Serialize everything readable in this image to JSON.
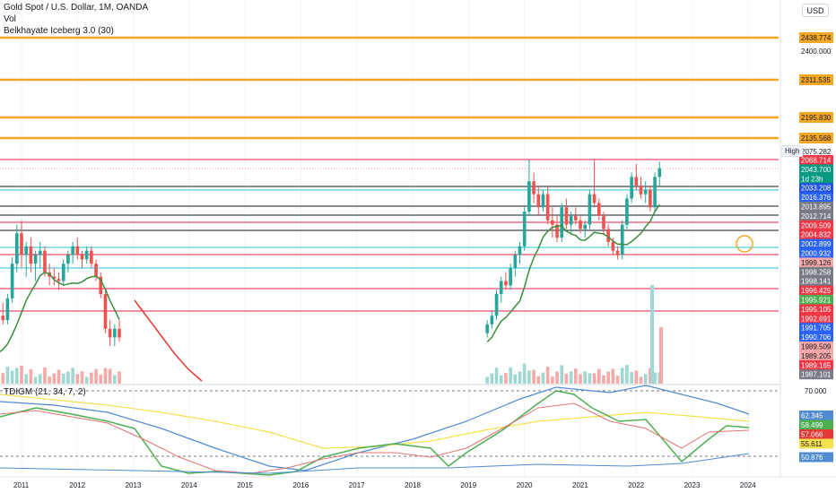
{
  "header": {
    "title": "Gold Spot / U.S. Dollar, 1M, OANDA",
    "vol_label": "Vol",
    "indicator_label": "Belkhayate Iceberg 3.0 (30)",
    "currency_button": "USD",
    "osc_label": "TDIGM (21, 34, 7, 2)",
    "high_tag": "High"
  },
  "colors": {
    "up": "#26a69a",
    "down": "#ef5350",
    "vol_up": "#9fd8d2",
    "vol_down": "#f7a9a7",
    "orange": "#f5a623",
    "red_line": "#e91e40",
    "black_line": "#131722",
    "teal_line": "#26c6da",
    "ma": "#388e3c",
    "ma_red": "#e53935",
    "osc_blue": "#4f8ad3",
    "osc_yellow": "#f4e04d",
    "osc_green": "#4caf50",
    "osc_pink": "#e57373"
  },
  "chart_data": [
    {
      "type": "candlestick",
      "title": "Gold Spot / U.S. Dollar, 1M, OANDA",
      "x_ticks": [
        "2011",
        "2012",
        "2013",
        "2014",
        "2015",
        "2016",
        "2017",
        "2018",
        "2019",
        "2020",
        "2021",
        "2022",
        "2023",
        "2024"
      ],
      "y_scale": "piecewise",
      "y_tick_labels": [
        "2438.774",
        "2400.000",
        "2311.535",
        "2195.830",
        "2135.568",
        "2075.282"
      ],
      "visible_price_gridline": "2400.000",
      "horizontal_levels": [
        {
          "price": "2438.774",
          "color": "orange"
        },
        {
          "price": "2311.535",
          "color": "orange"
        },
        {
          "price": "2195.830",
          "color": "orange"
        },
        {
          "price": "2135.568",
          "color": "orange"
        },
        {
          "price": "2068.714",
          "color": "red"
        },
        {
          "price": "2033.208",
          "color": "black"
        },
        {
          "price": "2016.376",
          "color": "teal"
        },
        {
          "price": "2013.895",
          "color": "black"
        },
        {
          "price": "2012.714",
          "color": "black"
        },
        {
          "price": "2009.509",
          "color": "red"
        },
        {
          "price": "2004.832",
          "color": "black"
        },
        {
          "price": "2002.899",
          "color": "teal"
        },
        {
          "price": "2000.932",
          "color": "red"
        },
        {
          "price": "1998.258",
          "color": "teal"
        },
        {
          "price": "1996.425",
          "color": "red"
        },
        {
          "price": "1992.691",
          "color": "red"
        }
      ],
      "price_labels": [
        {
          "text": "2068.714",
          "bg": "#f23645",
          "fg": "#ffffff"
        },
        {
          "text": "2043.700",
          "bg": "#089981",
          "fg": "#ffffff"
        },
        {
          "text": "1d 23h",
          "bg": "#089981",
          "fg": "#ffffff"
        },
        {
          "text": "2033.208",
          "bg": "#1e53e5",
          "fg": "#ffffff"
        },
        {
          "text": "2016.376",
          "bg": "#2962ff",
          "fg": "#ffffff"
        },
        {
          "text": "2013.895",
          "bg": "#787b86",
          "fg": "#ffffff"
        },
        {
          "text": "2012.714",
          "bg": "#787b86",
          "fg": "#ffffff"
        },
        {
          "text": "2009.509",
          "bg": "#f23645",
          "fg": "#ffffff"
        },
        {
          "text": "2004.832",
          "bg": "#f23645",
          "fg": "#ffffff"
        },
        {
          "text": "2002.899",
          "bg": "#2962ff",
          "fg": "#ffffff"
        },
        {
          "text": "2000.932",
          "bg": "#2962ff",
          "fg": "#ffffff"
        },
        {
          "text": "1999.126",
          "bg": "#f7a9a7",
          "fg": "#131722"
        },
        {
          "text": "1998.258",
          "bg": "#787b86",
          "fg": "#ffffff"
        },
        {
          "text": "1998.141",
          "bg": "#787b86",
          "fg": "#ffffff"
        },
        {
          "text": "1996.425",
          "bg": "#f23645",
          "fg": "#ffffff"
        },
        {
          "text": "1995.921",
          "bg": "#4caf50",
          "fg": "#ffffff"
        },
        {
          "text": "1995.105",
          "bg": "#f23645",
          "fg": "#ffffff"
        },
        {
          "text": "1992.691",
          "bg": "#f23645",
          "fg": "#ffffff"
        },
        {
          "text": "1991.705",
          "bg": "#2962ff",
          "fg": "#ffffff"
        },
        {
          "text": "1990.706",
          "bg": "#2962ff",
          "fg": "#ffffff"
        },
        {
          "text": "1989.509",
          "bg": "#f7a9a7",
          "fg": "#131722"
        },
        {
          "text": "1989.205",
          "bg": "#f7a9a7",
          "fg": "#131722"
        },
        {
          "text": "1989.165",
          "bg": "#f23645",
          "fg": "#ffffff"
        },
        {
          "text": "1987.101",
          "bg": "#787b86",
          "fg": "#ffffff"
        }
      ],
      "note_unlabeled_axis": "price axis between labeled levels is not printed; candles drawn in relative units (0 = low of range, 100 = all-time high)",
      "candles_2011_2015": [
        {
          "o": 8,
          "h": 14,
          "l": 5,
          "c": 12
        },
        {
          "o": 12,
          "h": 18,
          "l": 9,
          "c": 16
        },
        {
          "o": 16,
          "h": 22,
          "l": 14,
          "c": 20
        },
        {
          "o": 20,
          "h": 30,
          "l": 18,
          "c": 28
        },
        {
          "o": 28,
          "h": 34,
          "l": 24,
          "c": 26
        },
        {
          "o": 26,
          "h": 38,
          "l": 24,
          "c": 36
        },
        {
          "o": 36,
          "h": 55,
          "l": 34,
          "c": 52
        },
        {
          "o": 52,
          "h": 70,
          "l": 48,
          "c": 66
        },
        {
          "o": 66,
          "h": 72,
          "l": 50,
          "c": 56
        },
        {
          "o": 56,
          "h": 62,
          "l": 46,
          "c": 60
        },
        {
          "o": 60,
          "h": 64,
          "l": 48,
          "c": 52
        },
        {
          "o": 52,
          "h": 58,
          "l": 44,
          "c": 56
        },
        {
          "o": 56,
          "h": 62,
          "l": 50,
          "c": 58
        },
        {
          "o": 58,
          "h": 60,
          "l": 46,
          "c": 48
        },
        {
          "o": 48,
          "h": 52,
          "l": 42,
          "c": 46
        },
        {
          "o": 46,
          "h": 50,
          "l": 42,
          "c": 45
        },
        {
          "o": 45,
          "h": 48,
          "l": 40,
          "c": 44
        },
        {
          "o": 44,
          "h": 54,
          "l": 42,
          "c": 52
        },
        {
          "o": 52,
          "h": 58,
          "l": 48,
          "c": 56
        },
        {
          "o": 56,
          "h": 62,
          "l": 52,
          "c": 60
        },
        {
          "o": 60,
          "h": 64,
          "l": 54,
          "c": 56
        },
        {
          "o": 56,
          "h": 58,
          "l": 50,
          "c": 54
        },
        {
          "o": 54,
          "h": 60,
          "l": 52,
          "c": 58
        },
        {
          "o": 58,
          "h": 60,
          "l": 50,
          "c": 52
        },
        {
          "o": 52,
          "h": 54,
          "l": 44,
          "c": 46
        },
        {
          "o": 46,
          "h": 48,
          "l": 36,
          "c": 38
        },
        {
          "o": 38,
          "h": 40,
          "l": 20,
          "c": 22
        },
        {
          "o": 22,
          "h": 26,
          "l": 14,
          "c": 18
        },
        {
          "o": 18,
          "h": 24,
          "l": 14,
          "c": 22
        },
        {
          "o": 22,
          "h": 26,
          "l": 16,
          "c": 18
        }
      ],
      "candles_2019_2023": [
        {
          "o": 20,
          "h": 26,
          "l": 18,
          "c": 24
        },
        {
          "o": 24,
          "h": 30,
          "l": 22,
          "c": 28
        },
        {
          "o": 28,
          "h": 40,
          "l": 26,
          "c": 38
        },
        {
          "o": 38,
          "h": 46,
          "l": 34,
          "c": 44
        },
        {
          "o": 44,
          "h": 48,
          "l": 40,
          "c": 42
        },
        {
          "o": 42,
          "h": 52,
          "l": 40,
          "c": 50
        },
        {
          "o": 50,
          "h": 58,
          "l": 46,
          "c": 56
        },
        {
          "o": 56,
          "h": 62,
          "l": 52,
          "c": 60
        },
        {
          "o": 60,
          "h": 78,
          "l": 58,
          "c": 76
        },
        {
          "o": 76,
          "h": 100,
          "l": 74,
          "c": 90
        },
        {
          "o": 90,
          "h": 94,
          "l": 80,
          "c": 84
        },
        {
          "o": 84,
          "h": 88,
          "l": 74,
          "c": 78
        },
        {
          "o": 78,
          "h": 86,
          "l": 76,
          "c": 84
        },
        {
          "o": 84,
          "h": 88,
          "l": 70,
          "c": 72
        },
        {
          "o": 72,
          "h": 78,
          "l": 64,
          "c": 70
        },
        {
          "o": 70,
          "h": 74,
          "l": 62,
          "c": 64
        },
        {
          "o": 64,
          "h": 80,
          "l": 62,
          "c": 78
        },
        {
          "o": 78,
          "h": 82,
          "l": 68,
          "c": 70
        },
        {
          "o": 70,
          "h": 76,
          "l": 66,
          "c": 74
        },
        {
          "o": 74,
          "h": 78,
          "l": 70,
          "c": 72
        },
        {
          "o": 72,
          "h": 74,
          "l": 66,
          "c": 68
        },
        {
          "o": 68,
          "h": 72,
          "l": 64,
          "c": 70
        },
        {
          "o": 70,
          "h": 86,
          "l": 68,
          "c": 84
        },
        {
          "o": 84,
          "h": 100,
          "l": 78,
          "c": 80
        },
        {
          "o": 80,
          "h": 82,
          "l": 72,
          "c": 74
        },
        {
          "o": 74,
          "h": 76,
          "l": 66,
          "c": 68
        },
        {
          "o": 68,
          "h": 70,
          "l": 60,
          "c": 62
        },
        {
          "o": 62,
          "h": 64,
          "l": 56,
          "c": 58
        },
        {
          "o": 58,
          "h": 60,
          "l": 54,
          "c": 56
        },
        {
          "o": 56,
          "h": 72,
          "l": 54,
          "c": 70
        },
        {
          "o": 70,
          "h": 84,
          "l": 68,
          "c": 82
        },
        {
          "o": 82,
          "h": 94,
          "l": 80,
          "c": 92
        },
        {
          "o": 92,
          "h": 98,
          "l": 86,
          "c": 88
        },
        {
          "o": 88,
          "h": 92,
          "l": 82,
          "c": 84
        },
        {
          "o": 84,
          "h": 90,
          "l": 80,
          "c": 86
        },
        {
          "o": 86,
          "h": 88,
          "l": 76,
          "c": 78
        },
        {
          "o": 78,
          "h": 94,
          "l": 76,
          "c": 92
        },
        {
          "o": 92,
          "h": 99,
          "l": 88,
          "c": 96
        }
      ],
      "volume_note": "relative volume bars (0-100) per month",
      "oscillator": {
        "label": "TDIGM (21, 34, 7, 2)",
        "axis_labels": [
          "70.000",
          "62.345",
          "58.499",
          "57.066",
          "55.611",
          "50.876"
        ],
        "value_labels": [
          {
            "text": "62.345",
            "bg": "#4f8ad3",
            "fg": "#ffffff"
          },
          {
            "text": "58.499",
            "bg": "#4caf50",
            "fg": "#ffffff"
          },
          {
            "text": "57.066",
            "bg": "#e53935",
            "fg": "#ffffff"
          },
          {
            "text": "55.611",
            "bg": "#f4e04d",
            "fg": "#131722"
          },
          {
            "text": "50.876",
            "bg": "#4f8ad3",
            "fg": "#ffffff"
          }
        ]
      }
    }
  ]
}
